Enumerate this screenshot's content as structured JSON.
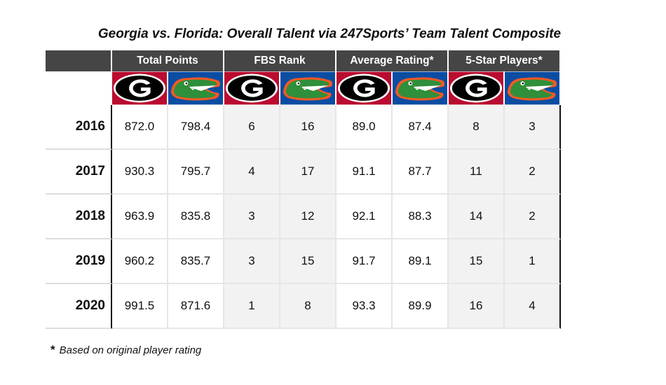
{
  "chart_data": {
    "type": "table",
    "title": "Georgia vs. Florida: Overall Talent via 247Sports’ Team Talent Composite",
    "groups": [
      {
        "label": "Total Points"
      },
      {
        "label": "FBS Rank"
      },
      {
        "label": "Average Rating*"
      },
      {
        "label": "5-Star Players*"
      }
    ],
    "teams": [
      "georgia-logo",
      "florida-logo"
    ],
    "rows": [
      {
        "year": "2016",
        "values": [
          "872.0",
          "798.4",
          "6",
          "16",
          "89.0",
          "87.4",
          "8",
          "3"
        ]
      },
      {
        "year": "2017",
        "values": [
          "930.3",
          "795.7",
          "4",
          "17",
          "91.1",
          "87.7",
          "11",
          "2"
        ]
      },
      {
        "year": "2018",
        "values": [
          "963.9",
          "835.8",
          "3",
          "12",
          "92.1",
          "88.3",
          "14",
          "2"
        ]
      },
      {
        "year": "2019",
        "values": [
          "960.2",
          "835.7",
          "3",
          "15",
          "91.7",
          "89.1",
          "15",
          "1"
        ]
      },
      {
        "year": "2020",
        "values": [
          "991.5",
          "871.6",
          "1",
          "8",
          "93.3",
          "89.9",
          "16",
          "4"
        ]
      }
    ],
    "footnote": {
      "marker": "*",
      "text": "Based on original player rating"
    },
    "colors": {
      "header_bg": "#454545",
      "georgia_red": "#ba0c2f",
      "florida_blue": "#0a4da3",
      "gator_green": "#2f8f3a",
      "gator_orange": "#f15a24"
    }
  }
}
